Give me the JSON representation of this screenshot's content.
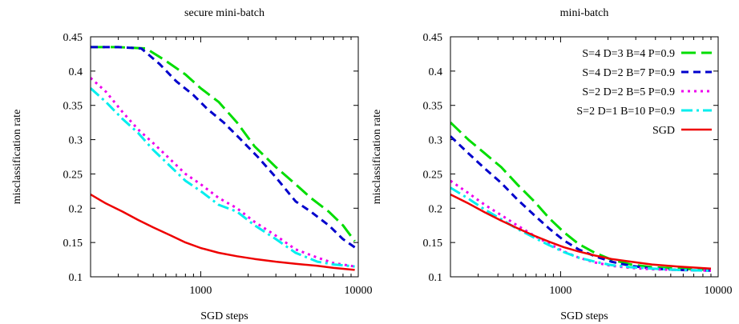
{
  "chart_data": [
    {
      "type": "line",
      "title": "secure mini-batch",
      "xlabel": "SGD steps",
      "ylabel": "misclassification rate",
      "xscale": "log",
      "xlim": [
        200,
        10000
      ],
      "ylim": [
        0.1,
        0.45
      ],
      "xticks": [
        1000,
        10000
      ],
      "xtick_labels": [
        "1000",
        "10000"
      ],
      "yticks": [
        0.1,
        0.15,
        0.2,
        0.25,
        0.3,
        0.35,
        0.4,
        0.45
      ],
      "ytick_labels": [
        "0.1",
        "0.15",
        "0.2",
        "0.25",
        "0.3",
        "0.35",
        "0.4",
        "0.45"
      ],
      "legend": null,
      "series": [
        {
          "name": "S=4 D=3 B=4 P=0.9",
          "color": "#00dd00",
          "dash": "long",
          "x": [
            200,
            300,
            450,
            600,
            800,
            1000,
            1300,
            1700,
            2200,
            3000,
            4000,
            5000,
            6500,
            8000,
            9500
          ],
          "y": [
            0.435,
            0.435,
            0.433,
            0.415,
            0.395,
            0.375,
            0.355,
            0.325,
            0.29,
            0.26,
            0.235,
            0.215,
            0.195,
            0.175,
            0.152
          ]
        },
        {
          "name": "S=4 D=2 B=7 P=0.9",
          "color": "#0000cc",
          "dash": "short",
          "x": [
            200,
            300,
            420,
            550,
            700,
            900,
            1100,
            1400,
            1800,
            2300,
            3000,
            4000,
            5000,
            6500,
            8000,
            9500
          ],
          "y": [
            0.435,
            0.435,
            0.433,
            0.41,
            0.385,
            0.365,
            0.345,
            0.325,
            0.3,
            0.275,
            0.245,
            0.21,
            0.195,
            0.175,
            0.155,
            0.143
          ]
        },
        {
          "name": "S=2 D=2 B=5 P=0.9",
          "color": "#ee00ee",
          "dash": "dot",
          "x": [
            200,
            250,
            320,
            400,
            500,
            650,
            800,
            1000,
            1300,
            1700,
            2200,
            3000,
            4000,
            5500,
            7000,
            9500
          ],
          "y": [
            0.39,
            0.37,
            0.34,
            0.315,
            0.295,
            0.27,
            0.25,
            0.235,
            0.215,
            0.2,
            0.18,
            0.16,
            0.14,
            0.128,
            0.12,
            0.115
          ]
        },
        {
          "name": "S=2 D=1 B=10 P=0.9",
          "color": "#00eeee",
          "dash": "dashdot",
          "x": [
            200,
            250,
            320,
            400,
            500,
            650,
            800,
            1000,
            1300,
            1700,
            2200,
            3000,
            4000,
            5500,
            7000,
            9500
          ],
          "y": [
            0.375,
            0.355,
            0.33,
            0.31,
            0.285,
            0.26,
            0.24,
            0.225,
            0.205,
            0.195,
            0.175,
            0.155,
            0.135,
            0.122,
            0.118,
            0.115
          ]
        },
        {
          "name": "SGD",
          "color": "#ee0000",
          "dash": "solid",
          "x": [
            200,
            250,
            320,
            400,
            500,
            650,
            800,
            1000,
            1300,
            1700,
            2200,
            3000,
            4000,
            5500,
            7000,
            9500
          ],
          "y": [
            0.22,
            0.207,
            0.195,
            0.183,
            0.172,
            0.16,
            0.15,
            0.142,
            0.135,
            0.13,
            0.126,
            0.122,
            0.119,
            0.116,
            0.113,
            0.11
          ]
        }
      ]
    },
    {
      "type": "line",
      "title": "mini-batch",
      "xlabel": "SGD steps",
      "ylabel": "misclassification rate",
      "xscale": "log",
      "xlim": [
        200,
        10000
      ],
      "ylim": [
        0.1,
        0.45
      ],
      "xticks": [
        1000,
        10000
      ],
      "xtick_labels": [
        "1000",
        "10000"
      ],
      "yticks": [
        0.1,
        0.15,
        0.2,
        0.25,
        0.3,
        0.35,
        0.4,
        0.45
      ],
      "ytick_labels": [
        "0.1",
        "0.15",
        "0.2",
        "0.25",
        "0.3",
        "0.35",
        "0.4",
        "0.45"
      ],
      "legend": "top-right",
      "series": [
        {
          "name": "S=4 D=3 B=4 P=0.9",
          "color": "#00dd00",
          "dash": "long",
          "x": [
            200,
            260,
            330,
            420,
            530,
            680,
            850,
            1050,
            1300,
            1650,
            2100,
            2800,
            3800,
            5500,
            9000
          ],
          "y": [
            0.325,
            0.3,
            0.28,
            0.26,
            0.235,
            0.21,
            0.185,
            0.165,
            0.148,
            0.135,
            0.125,
            0.118,
            0.114,
            0.112,
            0.11
          ]
        },
        {
          "name": "S=4 D=2 B=7 P=0.9",
          "color": "#0000cc",
          "dash": "short",
          "x": [
            200,
            260,
            330,
            420,
            530,
            680,
            850,
            1050,
            1300,
            1650,
            2100,
            2800,
            3800,
            5500,
            9000
          ],
          "y": [
            0.305,
            0.28,
            0.258,
            0.237,
            0.213,
            0.19,
            0.17,
            0.153,
            0.14,
            0.13,
            0.122,
            0.116,
            0.112,
            0.11,
            0.109
          ]
        },
        {
          "name": "S=2 D=2 B=5 P=0.9",
          "color": "#ee00ee",
          "dash": "dot",
          "x": [
            200,
            260,
            330,
            420,
            530,
            680,
            850,
            1050,
            1300,
            1650,
            2100,
            2800,
            3800,
            5500,
            9000
          ],
          "y": [
            0.24,
            0.222,
            0.205,
            0.19,
            0.175,
            0.16,
            0.148,
            0.137,
            0.128,
            0.121,
            0.116,
            0.113,
            0.111,
            0.11,
            0.109
          ]
        },
        {
          "name": "S=2 D=1 B=10 P=0.9",
          "color": "#00eeee",
          "dash": "dashdot",
          "x": [
            200,
            260,
            330,
            420,
            530,
            680,
            850,
            1050,
            1300,
            1650,
            2100,
            2800,
            3800,
            5500,
            9000
          ],
          "y": [
            0.23,
            0.214,
            0.198,
            0.184,
            0.17,
            0.157,
            0.146,
            0.136,
            0.128,
            0.122,
            0.117,
            0.114,
            0.112,
            0.11,
            0.109
          ]
        },
        {
          "name": "SGD",
          "color": "#ee0000",
          "dash": "solid",
          "x": [
            200,
            260,
            330,
            420,
            530,
            680,
            850,
            1050,
            1300,
            1650,
            2100,
            2800,
            3800,
            5500,
            9000
          ],
          "y": [
            0.22,
            0.207,
            0.194,
            0.182,
            0.171,
            0.16,
            0.151,
            0.143,
            0.137,
            0.131,
            0.126,
            0.122,
            0.118,
            0.115,
            0.112
          ]
        }
      ]
    }
  ]
}
